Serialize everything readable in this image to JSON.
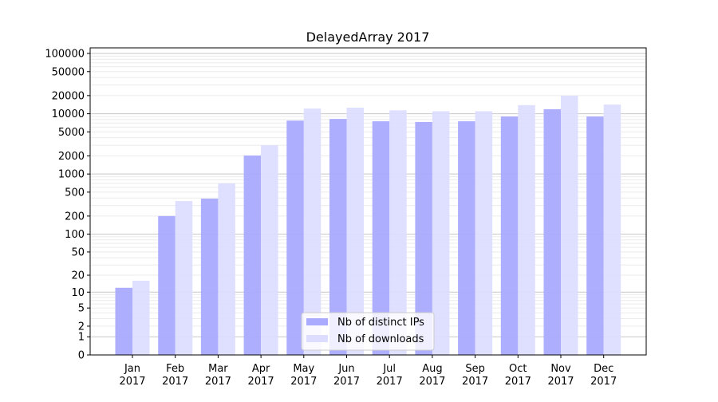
{
  "chart_data": {
    "type": "bar",
    "title": "DelayedArray 2017",
    "xlabel": "",
    "ylabel": "",
    "yscale": "log10(1+y)",
    "ylim": [
      0,
      120000
    ],
    "grid": true,
    "legend_position": "bottom-center",
    "categories": [
      "Jan\n2017",
      "Feb\n2017",
      "Mar\n2017",
      "Apr\n2017",
      "May\n2017",
      "Jun\n2017",
      "Jul\n2017",
      "Aug\n2017",
      "Sep\n2017",
      "Oct\n2017",
      "Nov\n2017",
      "Dec\n2017"
    ],
    "yticks": [
      0,
      1,
      2,
      5,
      10,
      20,
      50,
      100,
      200,
      500,
      1000,
      2000,
      5000,
      10000,
      20000,
      50000,
      100000
    ],
    "series": [
      {
        "name": "Nb of distinct IPs",
        "color": "#aaaaff",
        "values": [
          12,
          200,
          390,
          2030,
          7700,
          8200,
          7500,
          7300,
          7500,
          9000,
          11900,
          9000
        ]
      },
      {
        "name": "Nb of downloads",
        "color": "#ddddff",
        "values": [
          16,
          355,
          700,
          3000,
          12200,
          12600,
          11400,
          11000,
          11000,
          13900,
          19900,
          14200
        ]
      }
    ]
  }
}
